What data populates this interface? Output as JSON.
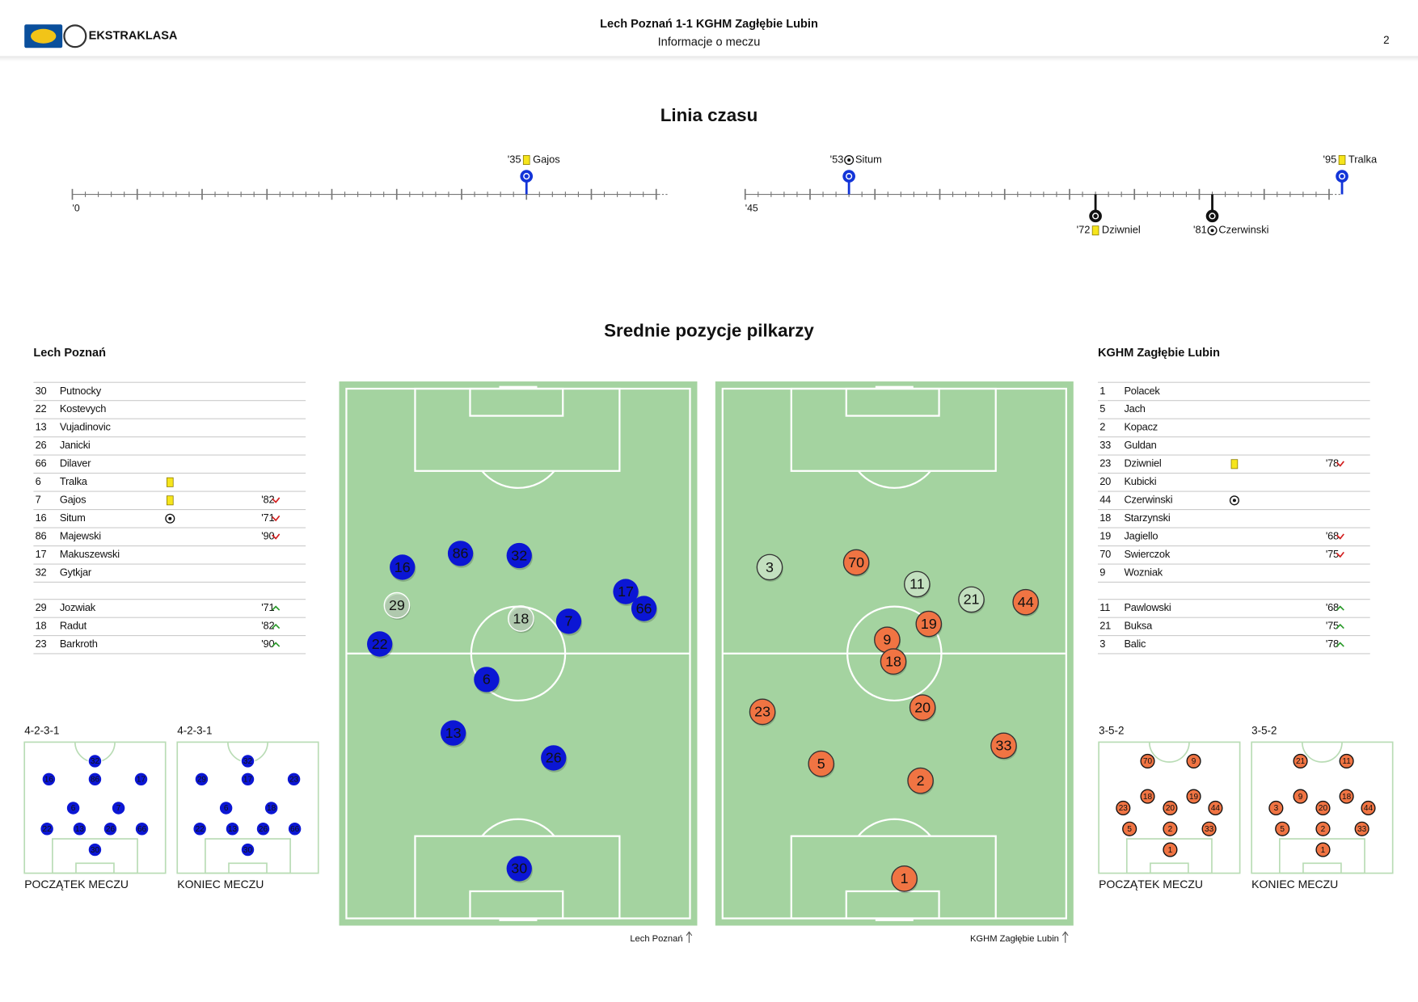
{
  "header": {
    "logo": "EKSTRAKLASA",
    "title": "Lech Poznań 1-1 KGHM Zagłębie Lubin",
    "subtitle": "Informacje o meczu",
    "page": "2"
  },
  "timeline": {
    "title": "Linia czasu",
    "halves": [
      {
        "label": "'0",
        "min": 0,
        "max": 46
      },
      {
        "label": "'45",
        "min": 45,
        "max": 91
      }
    ],
    "events": [
      {
        "minute": 35,
        "label": "'35",
        "player": "Gajos",
        "event": "yellow",
        "team": "home"
      },
      {
        "minute": 53,
        "label": "'53",
        "player": "Situm",
        "event": "goal",
        "team": "home"
      },
      {
        "minute": 95,
        "label": "'95",
        "player": "Tralka",
        "event": "yellow",
        "team": "home"
      },
      {
        "minute": 72,
        "label": "'72",
        "player": "Dziwniel",
        "event": "yellow",
        "team": "away"
      },
      {
        "minute": 81,
        "label": "'81",
        "player": "Czerwinski",
        "event": "goal",
        "team": "away"
      }
    ]
  },
  "positions": {
    "title": "Srednie pozycje pilkarzy",
    "teams": [
      {
        "name": "Lech Poznań",
        "pitch_caption": "Lech Poznań",
        "color": "#0b16d4",
        "lineup": [
          {
            "number": "30",
            "name": "Putnocky"
          },
          {
            "number": "22",
            "name": "Kostevych"
          },
          {
            "number": "13",
            "name": "Vujadinovic"
          },
          {
            "number": "26",
            "name": "Janicki"
          },
          {
            "number": "66",
            "name": "Dilaver"
          },
          {
            "number": "6",
            "name": "Tralka",
            "event": "yellow"
          },
          {
            "number": "7",
            "name": "Gajos",
            "event": "yellow",
            "sub": "'82",
            "dir": "out"
          },
          {
            "number": "16",
            "name": "Situm",
            "event": "goal",
            "sub": "'71",
            "dir": "out"
          },
          {
            "number": "86",
            "name": "Majewski",
            "sub": "'90",
            "dir": "out"
          },
          {
            "number": "17",
            "name": "Makuszewski"
          },
          {
            "number": "32",
            "name": "Gytkjar"
          }
        ],
        "bench": [
          {
            "number": "29",
            "name": "Jozwiak",
            "sub": "'71",
            "dir": "in"
          },
          {
            "number": "18",
            "name": "Radut",
            "sub": "'82",
            "dir": "in"
          },
          {
            "number": "23",
            "name": "Barkroth",
            "sub": "'90",
            "dir": "in"
          }
        ],
        "average": [
          {
            "number": "16",
            "x": 16.3,
            "y": 33.7
          },
          {
            "number": "86",
            "x": 33.2,
            "y": 31.1
          },
          {
            "number": "32",
            "x": 50.3,
            "y": 31.5
          },
          {
            "number": "29",
            "x": 14.7,
            "y": 40.9,
            "bench": true
          },
          {
            "number": "18",
            "x": 50.8,
            "y": 43.4,
            "bench": true
          },
          {
            "number": "7",
            "x": 64.7,
            "y": 43.9
          },
          {
            "number": "17",
            "x": 81.3,
            "y": 38.3
          },
          {
            "number": "66",
            "x": 86.6,
            "y": 41.5
          },
          {
            "number": "22",
            "x": 9.7,
            "y": 48.2
          },
          {
            "number": "6",
            "x": 40.8,
            "y": 54.9
          },
          {
            "number": "13",
            "x": 31.1,
            "y": 65.0
          },
          {
            "number": "26",
            "x": 60.3,
            "y": 69.7
          },
          {
            "number": "30",
            "x": 50.3,
            "y": 90.6
          }
        ],
        "formations": [
          {
            "name": "4-2-3-1",
            "caption": "POCZĄTEK MECZU",
            "players": [
              {
                "number": "32",
                "x": 50,
                "y": 14.5
              },
              {
                "number": "16",
                "x": 17.3,
                "y": 28.3
              },
              {
                "number": "86",
                "x": 50,
                "y": 28.3
              },
              {
                "number": "17",
                "x": 82.7,
                "y": 28.3
              },
              {
                "number": "6",
                "x": 34.6,
                "y": 50.3
              },
              {
                "number": "7",
                "x": 66.7,
                "y": 50.3
              },
              {
                "number": "22",
                "x": 16,
                "y": 66.2
              },
              {
                "number": "13",
                "x": 39.1,
                "y": 66.2
              },
              {
                "number": "26",
                "x": 60.9,
                "y": 66.2
              },
              {
                "number": "66",
                "x": 83.3,
                "y": 66.2
              },
              {
                "number": "30",
                "x": 50,
                "y": 82.1
              }
            ]
          },
          {
            "name": "4-2-3-1",
            "caption": "KONIEC MECZU",
            "players": [
              {
                "number": "32",
                "x": 50,
                "y": 14.5
              },
              {
                "number": "29",
                "x": 17.3,
                "y": 28.3
              },
              {
                "number": "17",
                "x": 50,
                "y": 28.3
              },
              {
                "number": "23",
                "x": 82.7,
                "y": 28.3
              },
              {
                "number": "6",
                "x": 34.6,
                "y": 50.3
              },
              {
                "number": "18",
                "x": 66.7,
                "y": 50.3
              },
              {
                "number": "22",
                "x": 16,
                "y": 66.2
              },
              {
                "number": "13",
                "x": 39.1,
                "y": 66.2
              },
              {
                "number": "26",
                "x": 60.9,
                "y": 66.2
              },
              {
                "number": "66",
                "x": 83.3,
                "y": 66.2
              },
              {
                "number": "30",
                "x": 50,
                "y": 82.1
              }
            ]
          }
        ]
      },
      {
        "name": "KGHM Zagłębie Lubin",
        "pitch_caption": "KGHM Zagłębie Lubin",
        "color": "#f07443",
        "lineup": [
          {
            "number": "1",
            "name": "Polacek"
          },
          {
            "number": "5",
            "name": "Jach"
          },
          {
            "number": "2",
            "name": "Kopacz"
          },
          {
            "number": "33",
            "name": "Guldan"
          },
          {
            "number": "23",
            "name": "Dziwniel",
            "event": "yellow",
            "sub": "'78",
            "dir": "out"
          },
          {
            "number": "20",
            "name": "Kubicki"
          },
          {
            "number": "44",
            "name": "Czerwinski",
            "event": "goal"
          },
          {
            "number": "18",
            "name": "Starzynski"
          },
          {
            "number": "19",
            "name": "Jagiello",
            "sub": "'68",
            "dir": "out"
          },
          {
            "number": "70",
            "name": "Swierczok",
            "sub": "'75",
            "dir": "out"
          },
          {
            "number": "9",
            "name": "Wozniak"
          }
        ],
        "bench": [
          {
            "number": "11",
            "name": "Pawlowski",
            "sub": "'68",
            "dir": "in"
          },
          {
            "number": "21",
            "name": "Buksa",
            "sub": "'75",
            "dir": "in"
          },
          {
            "number": "3",
            "name": "Balic",
            "sub": "'78",
            "dir": "in"
          }
        ],
        "average": [
          {
            "number": "3",
            "x": 13.7,
            "y": 33.7,
            "bench": true
          },
          {
            "number": "70",
            "x": 38.9,
            "y": 32.8
          },
          {
            "number": "11",
            "x": 56.6,
            "y": 36.9,
            "bench": true
          },
          {
            "number": "21",
            "x": 72.4,
            "y": 39.8,
            "bench": true
          },
          {
            "number": "44",
            "x": 88.2,
            "y": 40.3
          },
          {
            "number": "19",
            "x": 60,
            "y": 44.4
          },
          {
            "number": "9",
            "x": 47.9,
            "y": 47.4
          },
          {
            "number": "18",
            "x": 49.7,
            "y": 51.5
          },
          {
            "number": "20",
            "x": 58.2,
            "y": 60.2
          },
          {
            "number": "23",
            "x": 11.6,
            "y": 61
          },
          {
            "number": "33",
            "x": 81.8,
            "y": 67.4
          },
          {
            "number": "5",
            "x": 28.7,
            "y": 70.8
          },
          {
            "number": "2",
            "x": 57.6,
            "y": 74
          },
          {
            "number": "1",
            "x": 52.9,
            "y": 92.5
          }
        ],
        "formations": [
          {
            "name": "3-5-2",
            "caption": "POCZĄTEK MECZU",
            "players": [
              {
                "number": "70",
                "x": 34.6,
                "y": 14.5
              },
              {
                "number": "9",
                "x": 67.3,
                "y": 14.5
              },
              {
                "number": "18",
                "x": 34.6,
                "y": 41.4
              },
              {
                "number": "20",
                "x": 50.6,
                "y": 50.3
              },
              {
                "number": "19",
                "x": 67.3,
                "y": 41.4
              },
              {
                "number": "23",
                "x": 17.3,
                "y": 50.3
              },
              {
                "number": "44",
                "x": 82.7,
                "y": 50.3
              },
              {
                "number": "5",
                "x": 21.8,
                "y": 66.2
              },
              {
                "number": "2",
                "x": 50.6,
                "y": 66.2
              },
              {
                "number": "33",
                "x": 78.2,
                "y": 66.2
              },
              {
                "number": "1",
                "x": 50.6,
                "y": 82.1
              }
            ]
          },
          {
            "name": "3-5-2",
            "caption": "KONIEC MECZU",
            "players": [
              {
                "number": "21",
                "x": 34.6,
                "y": 14.5
              },
              {
                "number": "11",
                "x": 67.3,
                "y": 14.5
              },
              {
                "number": "9",
                "x": 34.6,
                "y": 41.4
              },
              {
                "number": "20",
                "x": 50.6,
                "y": 50.3
              },
              {
                "number": "18",
                "x": 67.3,
                "y": 41.4
              },
              {
                "number": "3",
                "x": 17.3,
                "y": 50.3
              },
              {
                "number": "44",
                "x": 82.7,
                "y": 50.3
              },
              {
                "number": "5",
                "x": 21.8,
                "y": 66.2
              },
              {
                "number": "2",
                "x": 50.6,
                "y": 66.2
              },
              {
                "number": "33",
                "x": 78.2,
                "y": 66.2
              },
              {
                "number": "1",
                "x": 50.6,
                "y": 82.1
              }
            ]
          }
        ]
      }
    ]
  }
}
